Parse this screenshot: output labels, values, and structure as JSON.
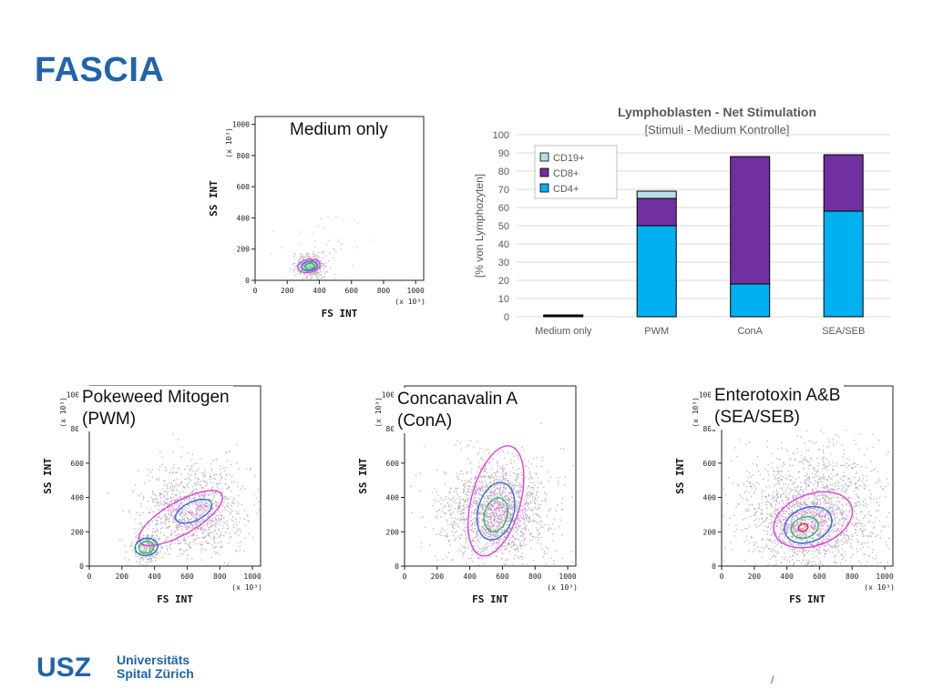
{
  "slide": {
    "title": "FASCIA",
    "page_marker": "/"
  },
  "logo": {
    "mark": "USZ",
    "line1": "Universitäts",
    "line2": "Spital Zürich"
  },
  "facs_common": {
    "x_axis_label": "FS INT",
    "y_axis_label": "SS INT",
    "x_ticks": [
      "0",
      "200",
      "400",
      "600",
      "800",
      "1000"
    ],
    "y_ticks": [
      "0",
      "200",
      "400",
      "600",
      "800",
      "1000"
    ],
    "x_multiplier": "(x 10³)",
    "y_multiplier": "(x 10³)"
  },
  "facs_plots": [
    {
      "id": "medium",
      "label": "Medium only",
      "distribution": "small compact cluster",
      "cluster_center_fs_ss": [
        340,
        90
      ]
    },
    {
      "id": "pwm",
      "label": "Pokeweed Mitogen\n(PWM)",
      "distribution": "resting cluster plus diagonal blast population",
      "cluster_center_fs_ss": [
        350,
        110
      ]
    },
    {
      "id": "cona",
      "label": "Concanavalin A\n(ConA)",
      "distribution": "broad blast population",
      "cluster_center_fs_ss": [
        560,
        300
      ]
    },
    {
      "id": "seaseb",
      "label": "Enterotoxin A&B\n(SEA/SEB)",
      "distribution": "broad blast population",
      "cluster_center_fs_ss": [
        500,
        230
      ]
    }
  ],
  "chart_data": {
    "type": "bar",
    "stacked": true,
    "title": "Lymphoblasten - Net Stimulation",
    "subtitle": "[Stimuli - Medium Kontrolle]",
    "ylabel": "[% von Lymphozyten]",
    "xlabel": "",
    "ylim": [
      0,
      100
    ],
    "yticks": [
      0,
      10,
      20,
      30,
      40,
      50,
      60,
      70,
      80,
      90,
      100
    ],
    "grid": true,
    "legend_position": "top-left",
    "categories": [
      "Medium only",
      "PWM",
      "ConA",
      "SEA/SEB"
    ],
    "series": [
      {
        "name": "CD4+",
        "color": "#00b0f0",
        "values": [
          0.5,
          50,
          18,
          58
        ]
      },
      {
        "name": "CD8+",
        "color": "#7030a0",
        "values": [
          0.5,
          15,
          70,
          31
        ]
      },
      {
        "name": "CD19+",
        "color": "#b7dde8",
        "values": [
          0,
          4,
          0,
          0
        ]
      }
    ]
  }
}
